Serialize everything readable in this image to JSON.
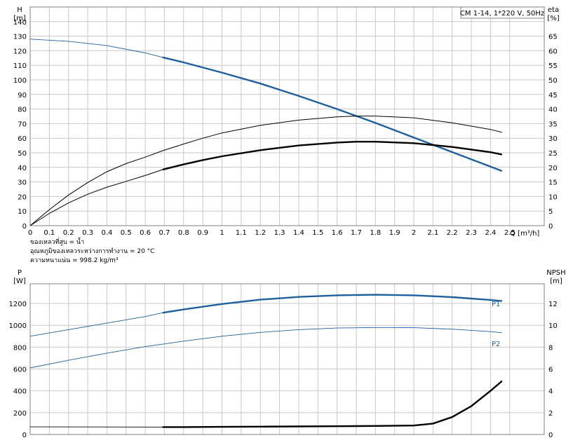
{
  "chart_data": [
    {
      "type": "line",
      "title": "CM 1-14, 1*220 V, 50Hz",
      "xlabel": "Q [m³/h]",
      "x_unit": "Q [m³/h]",
      "y_left": {
        "label": "H",
        "unit": "[m]",
        "ticks": [
          0,
          10,
          20,
          30,
          40,
          50,
          60,
          70,
          80,
          90,
          100,
          110,
          120,
          130,
          140
        ],
        "ylim": [
          0,
          150
        ]
      },
      "y_right": {
        "label": "eta",
        "unit": "[%]",
        "ticks": [
          0,
          5,
          10,
          15,
          20,
          25,
          30,
          35,
          40,
          45,
          50,
          55,
          60,
          65
        ],
        "ylim": [
          0,
          75
        ]
      },
      "x_ticks": [
        0,
        0.1,
        0.2,
        0.3,
        0.4,
        0.5,
        0.6,
        0.7,
        0.8,
        0.9,
        1.0,
        1.1,
        1.2,
        1.3,
        1.4,
        1.5,
        1.6,
        1.7,
        1.8,
        1.9,
        2.0,
        2.1,
        2.2,
        2.3,
        2.4,
        2.5
      ],
      "x_tick_labels": [
        "0",
        "0.1",
        "0.2",
        "0.3",
        "0.4",
        "0.5",
        "0.6",
        "0.7",
        "0.8",
        "0.9",
        "1",
        "1.1",
        "1.2",
        "1.3",
        "1.4",
        "1.5",
        "1.6",
        "1.7",
        "1.8",
        "1.9",
        "2",
        "2.1",
        "2.2",
        "2.3",
        "2.4",
        "2.5"
      ],
      "xlim": [
        0,
        2.68
      ],
      "grid": true,
      "series": [
        {
          "axis": "left",
          "color": "#1f5f9e",
          "x": [
            0,
            0.2,
            0.4,
            0.6,
            0.69,
            0.8,
            1.0,
            1.2,
            1.4,
            1.6,
            1.8,
            2.0,
            2.2,
            2.4,
            2.46
          ],
          "y": [
            128,
            126.5,
            123.5,
            118.5,
            115.5,
            112,
            105,
            97.5,
            89,
            80,
            70.5,
            60.5,
            50.5,
            40.5,
            37.5
          ],
          "operating_range": [
            0.69,
            2.46
          ]
        },
        {
          "axis": "right",
          "color": "#000000",
          "x": [
            0,
            0.1,
            0.2,
            0.3,
            0.4,
            0.5,
            0.6,
            0.69,
            0.8,
            0.9,
            1.0,
            1.2,
            1.4,
            1.6,
            1.7,
            1.8,
            2.0,
            2.2,
            2.4,
            2.46
          ],
          "y": [
            0,
            5.5,
            10.5,
            14.8,
            18.5,
            21.3,
            23.5,
            25.7,
            28.0,
            30.0,
            31.8,
            34.4,
            36.2,
            37.3,
            37.6,
            37.6,
            37.0,
            35.3,
            33.0,
            32.0
          ],
          "width": 1.0
        },
        {
          "axis": "right",
          "color": "#000000",
          "x": [
            0,
            0.1,
            0.2,
            0.3,
            0.4,
            0.5,
            0.6,
            0.69,
            0.8,
            0.9,
            1.0,
            1.2,
            1.4,
            1.6,
            1.7,
            1.8,
            2.0,
            2.2,
            2.4,
            2.46
          ],
          "y": [
            0,
            4.2,
            7.8,
            10.8,
            13.2,
            15.2,
            17.2,
            19.2,
            21.0,
            22.5,
            23.8,
            25.9,
            27.5,
            28.5,
            28.8,
            28.8,
            28.3,
            27.0,
            25.2,
            24.4
          ],
          "width": 1.0,
          "operating_range": [
            0.69,
            2.46
          ]
        }
      ],
      "notes": [
        "ของเหลวที่สูบ = น้ำ",
        "อุณหภูมิของเหลวระหว่างการทำงาน = 20 °C",
        "ความหนาแน่น = 998.2 kg/m³"
      ]
    },
    {
      "type": "line",
      "y_left": {
        "label": "P",
        "unit": "[W]",
        "ticks": [
          0,
          200,
          400,
          600,
          800,
          1000,
          1200
        ],
        "ylim": [
          0,
          1380
        ]
      },
      "y_right": {
        "label": "NPSH",
        "unit": "[m]",
        "ticks": [
          0,
          2,
          4,
          6,
          8,
          10,
          12
        ],
        "ylim": [
          0,
          13.8
        ]
      },
      "xlim": [
        0,
        2.68
      ],
      "grid": true,
      "series": [
        {
          "name": "P1",
          "axis": "left",
          "color": "#1f5f9e",
          "x": [
            0,
            0.2,
            0.4,
            0.6,
            0.69,
            0.8,
            1.0,
            1.2,
            1.4,
            1.6,
            1.8,
            2.0,
            2.2,
            2.4,
            2.46
          ],
          "y": [
            900,
            960,
            1020,
            1080,
            1115,
            1145,
            1195,
            1235,
            1260,
            1275,
            1280,
            1275,
            1258,
            1232,
            1222
          ],
          "operating_range": [
            0.69,
            2.46
          ]
        },
        {
          "name": "P2",
          "axis": "left",
          "color": "#1f5f9e",
          "x": [
            0,
            0.2,
            0.4,
            0.6,
            0.8,
            1.0,
            1.2,
            1.4,
            1.6,
            1.8,
            2.0,
            2.2,
            2.4,
            2.46
          ],
          "y": [
            610,
            680,
            745,
            805,
            855,
            900,
            935,
            960,
            975,
            980,
            978,
            965,
            942,
            932
          ]
        },
        {
          "axis": "right",
          "color": "#000000",
          "x": [
            0,
            0.69,
            0.8,
            1.0,
            1.2,
            1.4,
            1.6,
            1.8,
            2.0,
            2.1,
            2.2,
            2.3,
            2.4,
            2.46
          ],
          "y": [
            0.7,
            0.68,
            0.68,
            0.7,
            0.72,
            0.74,
            0.76,
            0.78,
            0.82,
            1.0,
            1.6,
            2.6,
            4.0,
            4.9
          ],
          "operating_range": [
            0.69,
            2.46
          ]
        }
      ]
    }
  ]
}
